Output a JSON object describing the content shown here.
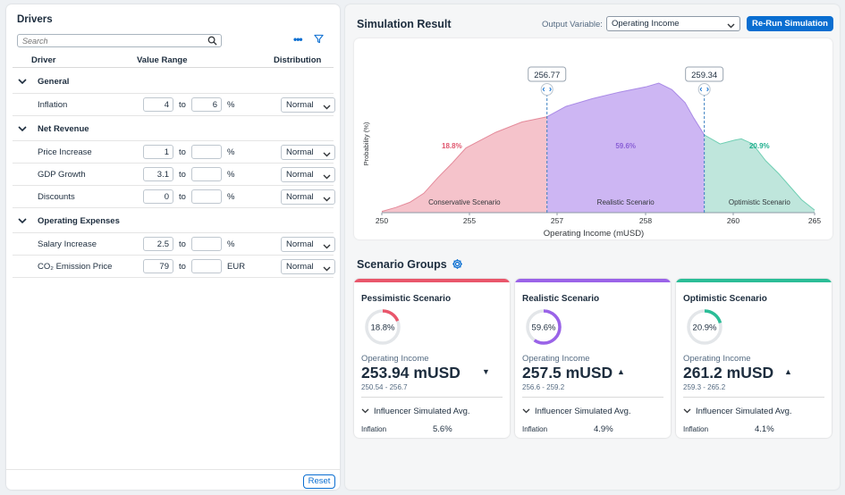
{
  "drivers": {
    "title": "Drivers",
    "search_placeholder": "Search",
    "columns": {
      "driver": "Driver",
      "value_range": "Value Range",
      "distribution": "Distribution"
    },
    "to_label": "to",
    "groups": [
      {
        "label": "General",
        "rows": [
          {
            "name": "Inflation",
            "from": "4",
            "to": "6",
            "unit": "%",
            "dist": "Normal"
          }
        ]
      },
      {
        "label": "Net Revenue",
        "rows": [
          {
            "name": "Price Increase",
            "from": "1",
            "to": "",
            "unit": "%",
            "dist": "Normal"
          },
          {
            "name": "GDP Growth",
            "from": "3.1",
            "to": "",
            "unit": "%",
            "dist": "Normal"
          },
          {
            "name": "Discounts",
            "from": "0",
            "to": "",
            "unit": "%",
            "dist": "Normal"
          }
        ]
      },
      {
        "label": "Operating Expenses",
        "rows": [
          {
            "name": "Salary Increase",
            "from": "2.5",
            "to": "",
            "unit": "%",
            "dist": "Normal"
          },
          {
            "name": "CO₂ Emission Price",
            "from": "79",
            "to": "",
            "unit": "EUR",
            "dist": "Normal"
          }
        ]
      }
    ],
    "reset_label": "Reset"
  },
  "simulation": {
    "title": "Simulation Result",
    "output_variable_label": "Output Variable:",
    "output_variable_value": "Operating Income",
    "rerun_label": "Re-Run Simulation"
  },
  "chart_data": {
    "type": "area",
    "xlabel": "Operating Income (mUSD)",
    "ylabel": "Probability (%)",
    "xlim": [
      250,
      265
    ],
    "x_ticks": [
      "250",
      "255",
      "257",
      "258",
      "260",
      "265"
    ],
    "x_tick_values": [
      250,
      255,
      257,
      258,
      260,
      265
    ],
    "ylim": [
      0,
      1
    ],
    "x": [
      250,
      250.8,
      251.6,
      252.4,
      253.2,
      254.0,
      254.8,
      255.6,
      256.2,
      256.77,
      257.1,
      257.4,
      257.7,
      258.0,
      258.3,
      258.6,
      258.9,
      259.1,
      259.34,
      259.7,
      260.1,
      260.5,
      261.2,
      262.0,
      262.8,
      263.5,
      264.2,
      265
    ],
    "y": [
      0.01,
      0.04,
      0.08,
      0.15,
      0.27,
      0.38,
      0.5,
      0.62,
      0.7,
      0.74,
      0.82,
      0.88,
      0.93,
      0.97,
      1.0,
      0.95,
      0.85,
      0.73,
      0.6,
      0.53,
      0.56,
      0.57,
      0.53,
      0.4,
      0.3,
      0.2,
      0.1,
      0.02
    ],
    "markers": [
      {
        "x": 256.77,
        "label": "256.77"
      },
      {
        "x": 259.34,
        "label": "259.34"
      }
    ],
    "regions": [
      {
        "name": "Conservative Scenario",
        "percent": "18.8%",
        "color": "#f5c3cb",
        "label_color": "#e0566e"
      },
      {
        "name": "Realistic Scenario",
        "percent": "59.6%",
        "color": "#cdb6f3",
        "label_color": "#8a5fd6"
      },
      {
        "name": "Optimistic Scenario",
        "percent": "20.9%",
        "color": "#bfe6dc",
        "label_color": "#22b08f"
      }
    ]
  },
  "scenario_groups": {
    "title": "Scenario Groups",
    "cards": [
      {
        "name": "Pessimistic Scenario",
        "percent": "18.8%",
        "pct_value": 0.188,
        "color": "#e9566b",
        "oi_label": "Operating Income",
        "value": "253.94 mUSD",
        "trend": "▼",
        "range": "250.54 - 256.7",
        "influencer_label": "Influencer Simulated Avg.",
        "infl_name": "Inflation",
        "infl_value": "5.6%"
      },
      {
        "name": "Realistic Scenario",
        "percent": "59.6%",
        "pct_value": 0.596,
        "color": "#9a63e8",
        "oi_label": "Operating Income",
        "value": "257.5 mUSD",
        "trend": "▲",
        "range": "256.6 - 259.2",
        "influencer_label": "Influencer Simulated Avg.",
        "infl_name": "Inflation",
        "infl_value": "4.9%"
      },
      {
        "name": "Optimistic Scenario",
        "percent": "20.9%",
        "pct_value": 0.209,
        "color": "#2bbd97",
        "oi_label": "Operating Income",
        "value": "261.2 mUSD",
        "trend": "▲",
        "range": "259.3 - 265.2",
        "influencer_label": "Influencer Simulated Avg.",
        "infl_name": "Inflation",
        "infl_value": "4.1%"
      }
    ]
  }
}
